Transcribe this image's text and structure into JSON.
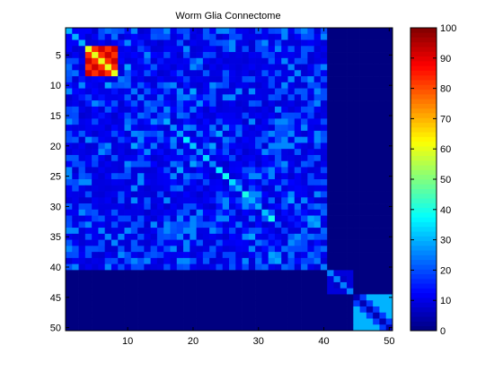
{
  "chart_data": {
    "type": "heatmap",
    "title": "Worm Glia Connectome",
    "xlabel": "",
    "ylabel": "",
    "rows": 50,
    "cols": 50,
    "xlim": [
      0.5,
      50.5
    ],
    "ylim": [
      0.5,
      50.5
    ],
    "y_reversed": true,
    "x_ticks": [
      10,
      20,
      30,
      40,
      50
    ],
    "x_tick_labels": [
      "10",
      "20",
      "30",
      "40",
      "50"
    ],
    "y_ticks": [
      5,
      10,
      15,
      20,
      25,
      30,
      35,
      40,
      45,
      50
    ],
    "y_tick_labels": [
      "5",
      "10",
      "15",
      "20",
      "25",
      "30",
      "35",
      "40",
      "45",
      "50"
    ],
    "colorbar": {
      "colormap": "jet",
      "range": [
        0,
        100
      ],
      "ticks": [
        0,
        10,
        20,
        30,
        40,
        50,
        60,
        70,
        80,
        90,
        100
      ],
      "tick_labels": [
        "0",
        "10",
        "20",
        "30",
        "40",
        "50",
        "60",
        "70",
        "80",
        "90",
        "100"
      ],
      "placement": "right"
    },
    "grid": false,
    "background_value": 0,
    "regions": [
      {
        "rows": [
          1,
          40
        ],
        "cols": [
          1,
          40
        ],
        "base_value": 10,
        "note": "neuron block"
      },
      {
        "rows": [
          4,
          8
        ],
        "cols": [
          4,
          8
        ],
        "checker_values": [
          92,
          83
        ],
        "diagonal_value": 60
      },
      {
        "rows": [
          41,
          44
        ],
        "cols": [
          41,
          44
        ],
        "base_value": 7,
        "diagonal_value": 25
      },
      {
        "rows": [
          45,
          50
        ],
        "cols": [
          45,
          50
        ],
        "base_value": 30,
        "diagonal_value": 5
      },
      {
        "rows": [
          1,
          3
        ],
        "cols": [
          1,
          3
        ],
        "base_value": 12,
        "diagonal_value": 30
      }
    ],
    "diagonal_peak": {
      "rows": [
        16,
        32
      ],
      "value": 38
    }
  }
}
